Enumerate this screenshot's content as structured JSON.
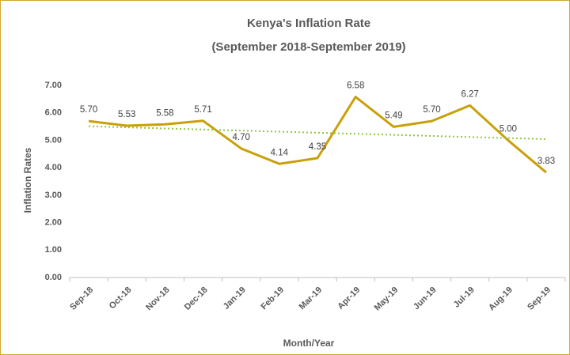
{
  "chart_data": {
    "type": "line",
    "title": "Kenya's Inflation Rate",
    "subtitle": "(September 2018-September 2019)",
    "x_label": "Month/Year",
    "y_label": "Inflation Rates",
    "categories": [
      "Sep-18",
      "Oct-18",
      "Nov-18",
      "Dec-18",
      "Jan-19",
      "Feb-19",
      "Mar-19",
      "Apr-19",
      "May-19",
      "Jun-19",
      "Jul-19",
      "Aug-19",
      "Sep-19"
    ],
    "series": [
      {
        "name": "Inflation Rate",
        "color": "#c9a00a",
        "values": [
          5.7,
          5.53,
          5.58,
          5.71,
          4.7,
          4.14,
          4.35,
          6.58,
          5.49,
          5.7,
          6.27,
          5.0,
          3.83
        ],
        "value_labels": [
          "5.70",
          "5.53",
          "5.58",
          "5.71",
          "4.70",
          "4.14",
          "4.35",
          "6.58",
          "5.49",
          "5.70",
          "6.27",
          "5.00",
          "3.83"
        ]
      }
    ],
    "trendline": {
      "type": "linear",
      "color": "#8dc63f"
    },
    "ylim": [
      0,
      7
    ],
    "yticks": [
      {
        "value": 0,
        "label": "0.00"
      },
      {
        "value": 1,
        "label": "1.00"
      },
      {
        "value": 2,
        "label": "2.00"
      },
      {
        "value": 3,
        "label": "3.00"
      },
      {
        "value": 4,
        "label": "4.00"
      },
      {
        "value": 5,
        "label": "5.00"
      },
      {
        "value": 6,
        "label": "6.00"
      },
      {
        "value": 7,
        "label": "7.00"
      }
    ],
    "grid": false
  }
}
